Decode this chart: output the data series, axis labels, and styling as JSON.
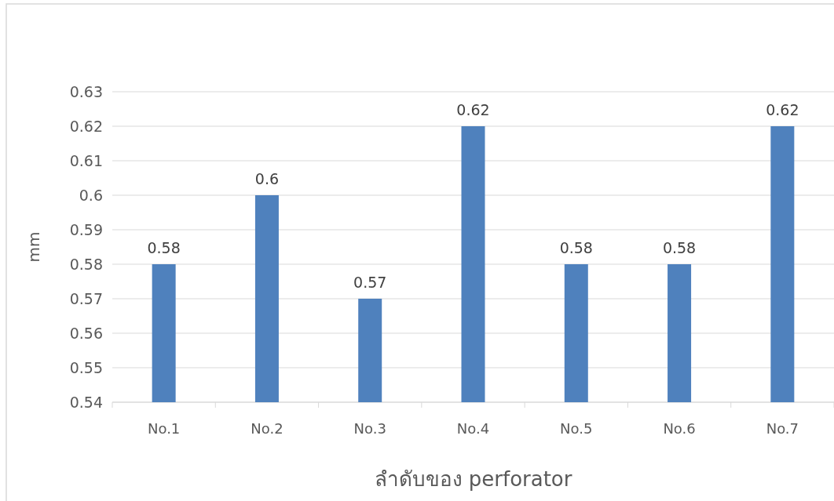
{
  "chart_data": {
    "type": "bar",
    "xlabel": "ลำดับของ perforator",
    "ylabel": "mm",
    "categories": [
      "No.1",
      "No.2",
      "No.3",
      "No.4",
      "No.5",
      "No.6",
      "No.7"
    ],
    "values": [
      0.58,
      0.6,
      0.57,
      0.62,
      0.58,
      0.58,
      0.62
    ],
    "color": "#4f81bd",
    "ylim": [
      0.54,
      0.63
    ],
    "yticks": [
      0.54,
      0.55,
      0.56,
      0.57,
      0.58,
      0.59,
      0.6,
      0.61,
      0.62,
      0.63
    ],
    "grid": "y",
    "data_labels": true
  }
}
